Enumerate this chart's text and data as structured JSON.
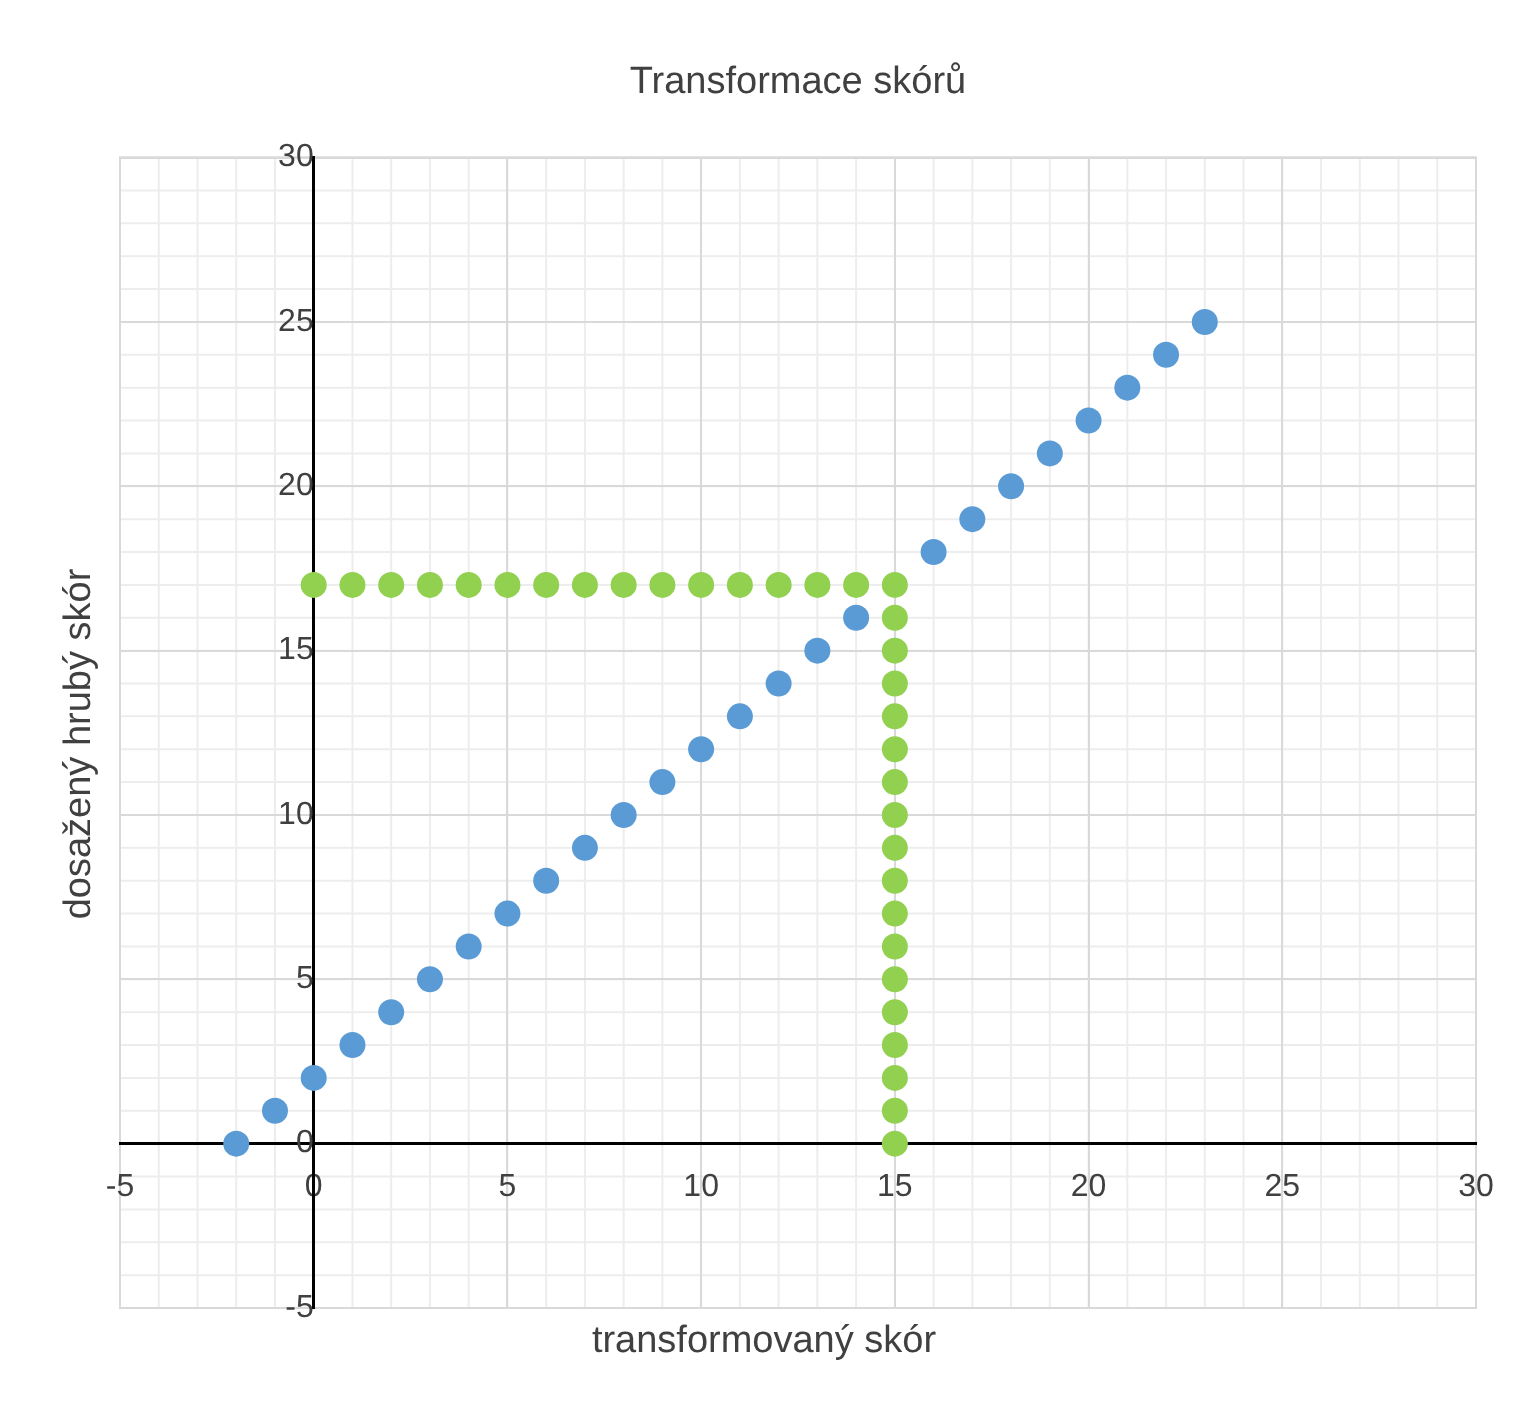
{
  "chart_data": {
    "type": "scatter",
    "title": "Transformace skórů",
    "xlabel": "transformovaný skór",
    "ylabel": "dosažený hrubý skór",
    "xlim": [
      -5,
      30
    ],
    "xticks": [
      -5,
      0,
      5,
      10,
      15,
      20,
      25,
      30
    ],
    "ylim": [
      -5,
      30
    ],
    "yticks": [
      -5,
      0,
      5,
      10,
      15,
      20,
      25,
      30
    ],
    "grid": true,
    "legend": false,
    "marker": "circle",
    "series": [
      {
        "color": "#5b9bd5",
        "x": [
          -2,
          -1,
          0,
          1,
          2,
          3,
          4,
          5,
          6,
          7,
          8,
          9,
          10,
          11,
          12,
          13,
          14,
          15,
          16,
          17,
          18,
          19,
          20,
          21,
          22,
          23
        ],
        "values": [
          0,
          1,
          2,
          3,
          4,
          5,
          6,
          7,
          8,
          9,
          10,
          11,
          12,
          13,
          14,
          15,
          16,
          null,
          18,
          19,
          20,
          21,
          22,
          23,
          24,
          25
        ]
      },
      {
        "color": "#92d050",
        "x": [
          0,
          1,
          2,
          3,
          4,
          5,
          6,
          7,
          8,
          9,
          10,
          11,
          12,
          13,
          14,
          15,
          15,
          15,
          15,
          15,
          15,
          15,
          15,
          15,
          15,
          15,
          15,
          15,
          15,
          15,
          15,
          15,
          15
        ],
        "values": [
          17,
          17,
          17,
          17,
          17,
          17,
          17,
          17,
          17,
          17,
          17,
          17,
          17,
          17,
          17,
          17,
          16,
          15,
          14,
          13,
          12,
          11,
          10,
          9,
          8,
          7,
          6,
          5,
          4,
          3,
          2,
          1,
          0
        ]
      }
    ]
  }
}
